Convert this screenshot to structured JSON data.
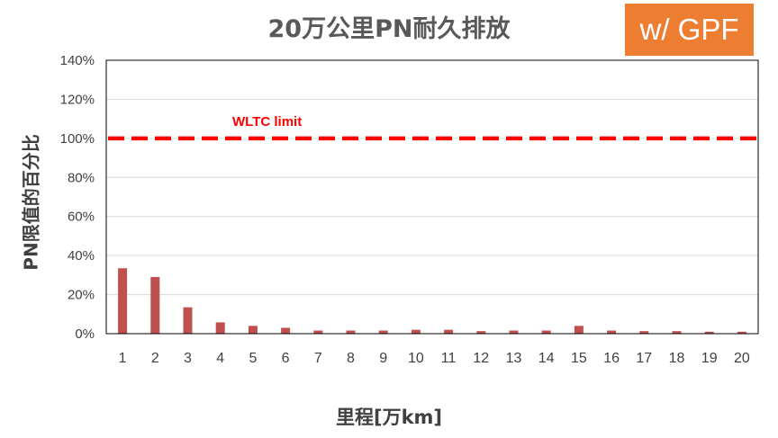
{
  "badge": "w/ GPF",
  "chart_data": {
    "type": "bar",
    "title": "20万公里PN耐久排放",
    "xlabel": "里程[万km]",
    "ylabel": "PN限值的百分比",
    "categories": [
      "1",
      "2",
      "3",
      "4",
      "5",
      "6",
      "7",
      "8",
      "9",
      "10",
      "11",
      "12",
      "13",
      "14",
      "15",
      "16",
      "17",
      "18",
      "19",
      "20"
    ],
    "values": [
      33.5,
      29,
      13.5,
      5.8,
      4,
      3,
      1.6,
      1.6,
      1.6,
      2,
      2,
      1.3,
      1.6,
      1.6,
      4,
      1.6,
      1.3,
      1.3,
      1,
      1
    ],
    "ylim": [
      0,
      140
    ],
    "yticks": [
      "0%",
      "20%",
      "40%",
      "60%",
      "80%",
      "100%",
      "120%",
      "140%"
    ],
    "ytick_values": [
      0,
      20,
      40,
      60,
      80,
      100,
      120,
      140
    ],
    "grid": true,
    "bar_color": "#c0504d",
    "reference_line": {
      "label": "WLTC limit",
      "value": 100,
      "color": "#ff0000"
    }
  }
}
